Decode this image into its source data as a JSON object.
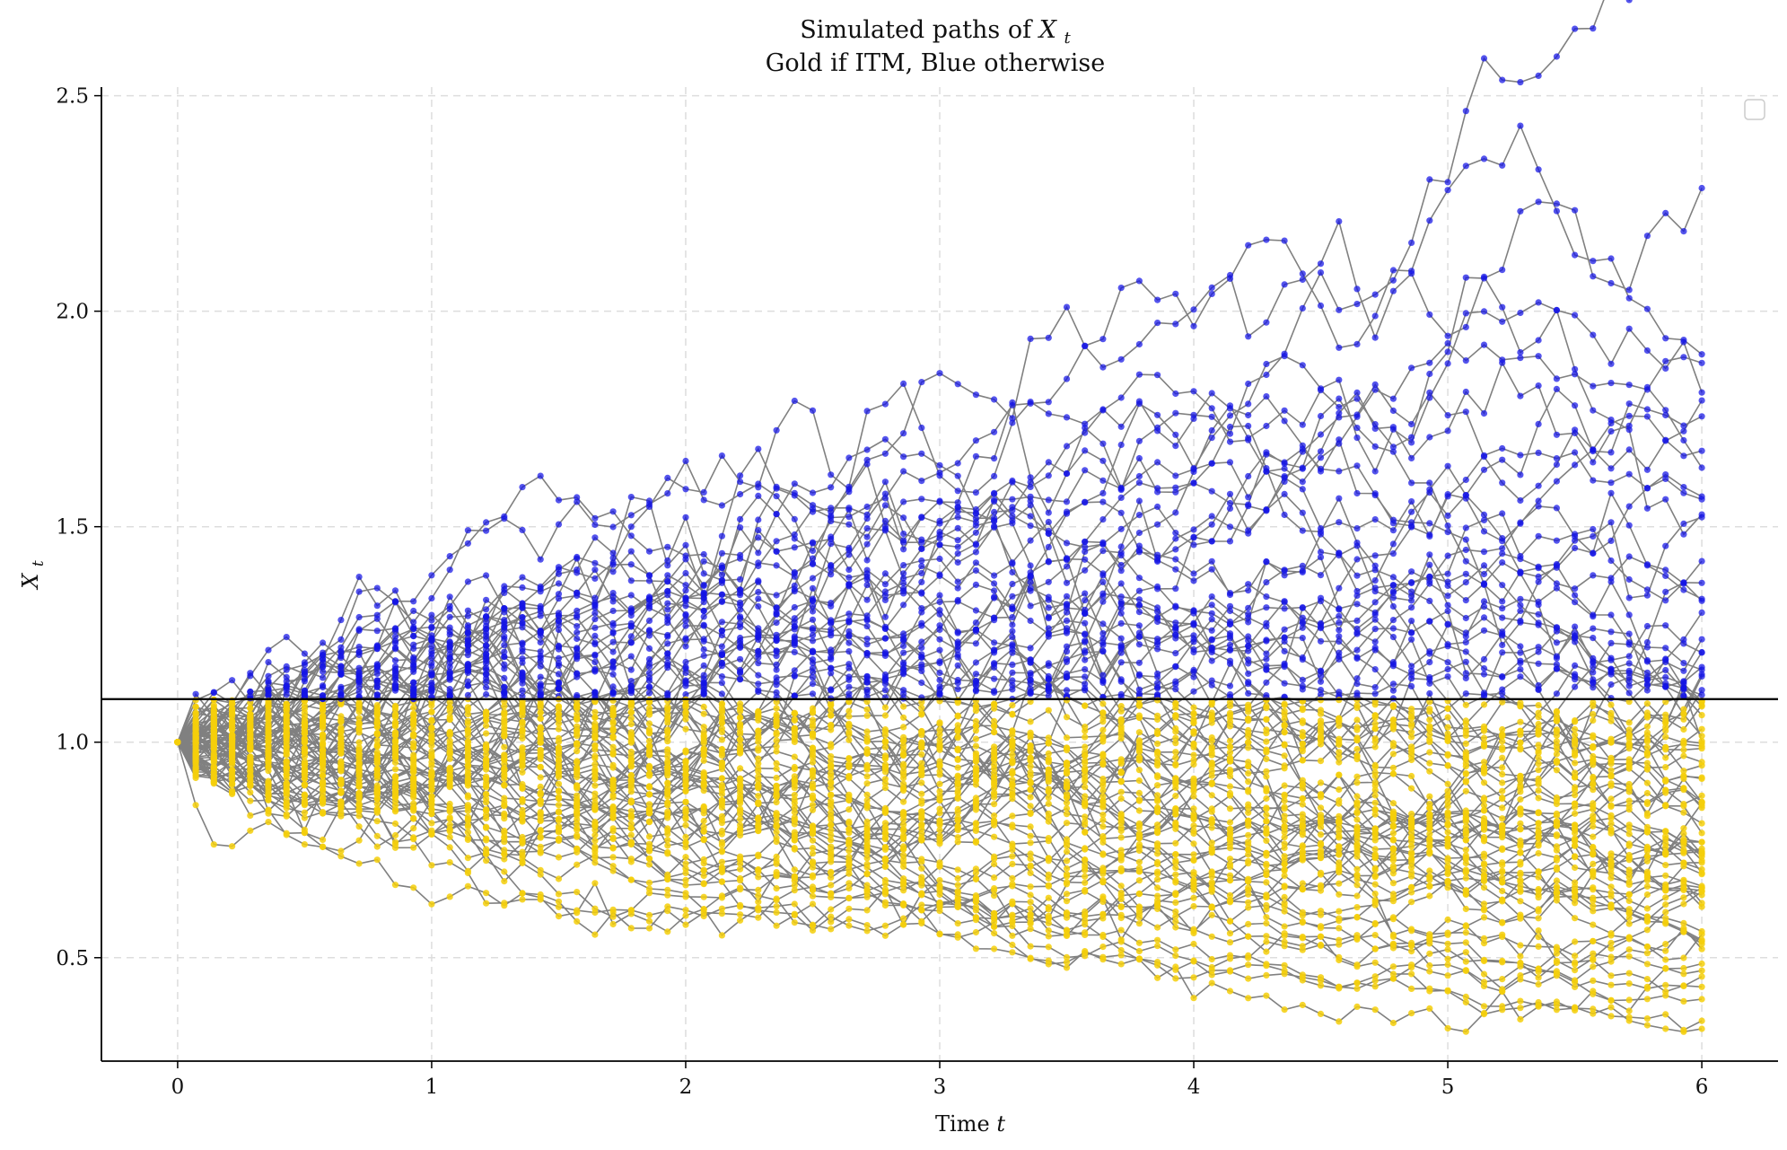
{
  "chart_data": {
    "type": "line",
    "title_line1": "Simulated paths of X_t",
    "title_line2": "Gold if ITM, Blue otherwise",
    "xlabel": "Time t",
    "ylabel": "X_t",
    "xlim": [
      -0.3,
      6.3
    ],
    "ylim": [
      0.26,
      2.52
    ],
    "xticks": [
      "0",
      "1",
      "2",
      "3",
      "4",
      "5",
      "6"
    ],
    "yticks": [
      "0.5",
      "1.0",
      "1.5",
      "2.0",
      "2.5"
    ],
    "grid": true,
    "legend": "top-right (empty)",
    "threshold": 1.1,
    "start_value": 1.0,
    "t_end": 6,
    "steps_per_path": 84,
    "colors": {
      "above_threshold": "#1414e6",
      "below_threshold": "#f5cf0a",
      "path_line": "#808080",
      "threshold_line": "#000000",
      "grid": "#dddddd"
    },
    "highlighted_paths": [
      {
        "t": [
          0,
          0.5,
          1.0,
          1.5,
          2.0,
          2.5,
          3.0,
          3.5,
          3.75,
          4.0,
          4.3,
          4.6,
          5.0,
          5.25,
          5.5,
          5.8,
          6.0
        ],
        "x": [
          1.0,
          1.16,
          1.22,
          1.26,
          1.33,
          1.52,
          1.62,
          1.84,
          2.1,
          1.97,
          2.2,
          1.9,
          2.27,
          2.42,
          2.15,
          2.0,
          1.9
        ]
      },
      {
        "t": [
          0,
          0.6,
          1.2,
          1.8,
          2.4,
          3.0,
          3.4,
          3.8,
          4.1,
          4.4,
          4.8,
          5.1,
          5.4,
          5.7,
          6.0
        ],
        "x": [
          1.0,
          1.15,
          1.25,
          1.3,
          1.46,
          1.5,
          1.62,
          1.85,
          1.72,
          1.62,
          1.83,
          1.93,
          1.87,
          1.82,
          1.88
        ]
      },
      {
        "t": [
          0,
          0.7,
          1.4,
          2.1,
          2.8,
          3.5,
          4.0,
          4.4,
          4.8,
          5.2,
          5.6,
          6.0
        ],
        "x": [
          1.0,
          1.2,
          1.62,
          1.4,
          1.72,
          1.44,
          1.42,
          1.3,
          1.42,
          1.7,
          1.62,
          1.57
        ]
      },
      {
        "t": [
          0,
          0.8,
          1.6,
          2.4,
          3.2,
          4.0,
          4.5,
          5.0,
          5.5,
          6.0
        ],
        "x": [
          1.0,
          1.12,
          1.3,
          1.43,
          1.55,
          1.22,
          1.26,
          1.4,
          1.38,
          1.42
        ]
      },
      {
        "t": [
          0,
          0.8,
          1.6,
          2.4,
          3.2,
          3.6,
          4.0,
          4.6,
          5.0,
          5.5,
          6.0
        ],
        "x": [
          1.0,
          0.8,
          0.63,
          0.6,
          0.62,
          0.55,
          0.43,
          0.38,
          0.36,
          0.4,
          0.47
        ]
      },
      {
        "t": [
          0,
          0.6,
          1.2,
          1.8,
          2.4,
          3.0,
          3.6,
          4.2,
          4.8,
          5.4,
          6.0
        ],
        "x": [
          1.0,
          0.72,
          0.62,
          0.6,
          0.6,
          0.64,
          0.6,
          0.62,
          0.58,
          0.53,
          0.52
        ]
      }
    ],
    "random_paths": {
      "count": 78,
      "annual_drift": 0.0,
      "annual_volatility": 0.15
    }
  }
}
